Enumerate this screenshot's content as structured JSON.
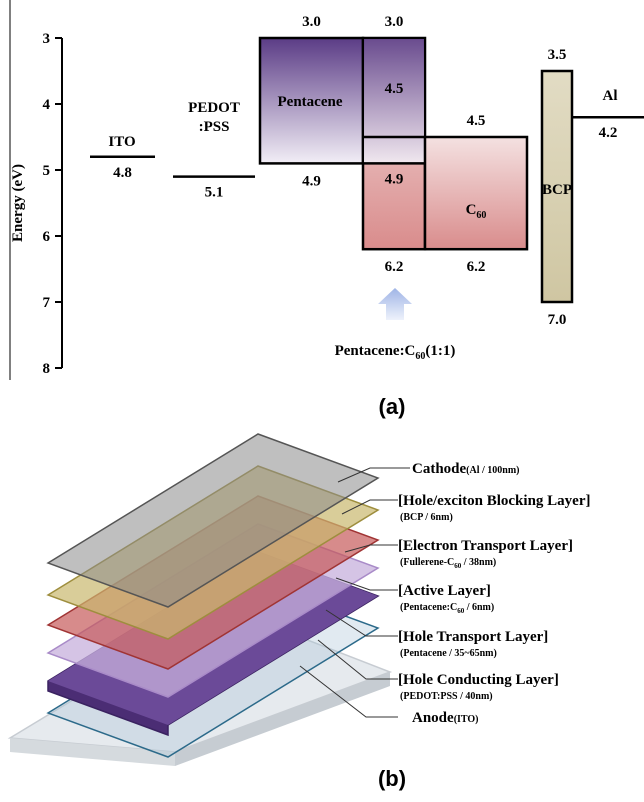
{
  "panel_a": {
    "y_label": "Energy (eV)",
    "ylim": [
      3,
      8
    ],
    "yticks": [
      3,
      4,
      5,
      6,
      7,
      8
    ],
    "levels": [
      {
        "name": "ITO",
        "energy": 4.8
      },
      {
        "name": [
          "PEDOT",
          ":PSS"
        ],
        "energy": 5.1
      },
      {
        "name": "Pentacene",
        "lumo": {
          "value": 3,
          "label": "3.0"
        },
        "homo": 4.9
      },
      {
        "lumo": {
          "value": 3,
          "label": "3.0"
        },
        "homo": 6.2,
        "inner": [
          4.5,
          4.9
        ]
      },
      {
        "name": [
          "C",
          "60"
        ],
        "lumo": 4.5,
        "homo": 6.2
      },
      {
        "name": "BCP",
        "lumo": 3.5,
        "homo": {
          "value": 7,
          "label": "7.0"
        }
      },
      {
        "name": "Al",
        "energy": 4.2
      }
    ],
    "blend_label": [
      "Pentacene:C",
      "60",
      "(1:1)"
    ],
    "caption": "(a)"
  },
  "panel_b": {
    "layers": [
      {
        "name": "Cathode",
        "note": [
          "(Al / 100nm)"
        ]
      },
      {
        "name": "[Hole/exciton Blocking Layer]",
        "note": [
          "(BCP / 6nm)"
        ]
      },
      {
        "name": "[Electron Transport Layer]",
        "note": [
          "(Fullerene-C",
          "60",
          " / 38nm)"
        ]
      },
      {
        "name": "[Active Layer]",
        "note": [
          "(Pentacene:C",
          "60",
          " / 6nm)"
        ]
      },
      {
        "name": "[Hole Transport Layer]",
        "note": [
          "(Pentacene / 35~65nm)"
        ]
      },
      {
        "name": "[Hole Conducting Layer]",
        "note": [
          "(PEDOT:PSS / 40nm)"
        ]
      },
      {
        "name": "Anode",
        "note": [
          "(ITO)"
        ]
      }
    ],
    "caption": "(b)"
  }
}
